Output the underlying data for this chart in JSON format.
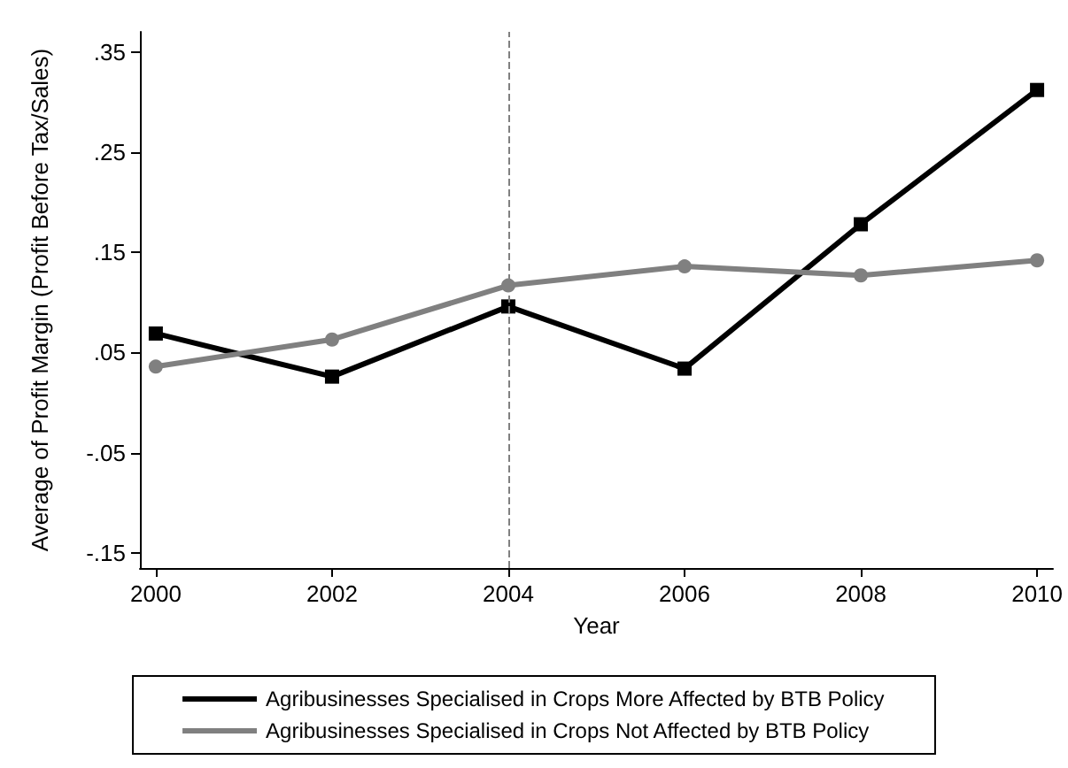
{
  "chart_data": {
    "type": "line",
    "xlabel": "Year",
    "ylabel": "Average of Profit Margin (Profit Before Tax/Sales)",
    "x": [
      2000,
      2002,
      2004,
      2006,
      2008,
      2010
    ],
    "series": [
      {
        "name": "Agribusinesses Specialised in Crops More Affected by BTB Policy",
        "color": "#000000",
        "marker": "square",
        "values": [
          0.069,
          0.026,
          0.096,
          0.034,
          0.178,
          0.312
        ]
      },
      {
        "name": "Agribusinesses Specialised in Crops Not Affected by BTB Policy",
        "color": "#808080",
        "marker": "circle",
        "values": [
          0.036,
          0.063,
          0.117,
          0.136,
          0.127,
          0.142
        ]
      }
    ],
    "xlim": [
      1999.82,
      2010.18
    ],
    "xticks": [
      2000,
      2002,
      2004,
      2006,
      2008,
      2010
    ],
    "ylim": [
      -0.165,
      0.37
    ],
    "yticks": [
      {
        "value": -0.15,
        "label": "-.15"
      },
      {
        "value": -0.05,
        "label": "-.05"
      },
      {
        "value": 0.05,
        "label": ".05"
      },
      {
        "value": 0.15,
        "label": ".15"
      },
      {
        "value": 0.25,
        "label": ".25"
      },
      {
        "value": 0.35,
        "label": ".35"
      }
    ],
    "ref_lines": [
      {
        "axis": "x",
        "value": 2004,
        "color": "#808080",
        "line_style": "dashed"
      }
    ],
    "grid": false,
    "legend": "bottom",
    "line_style": "solid"
  }
}
